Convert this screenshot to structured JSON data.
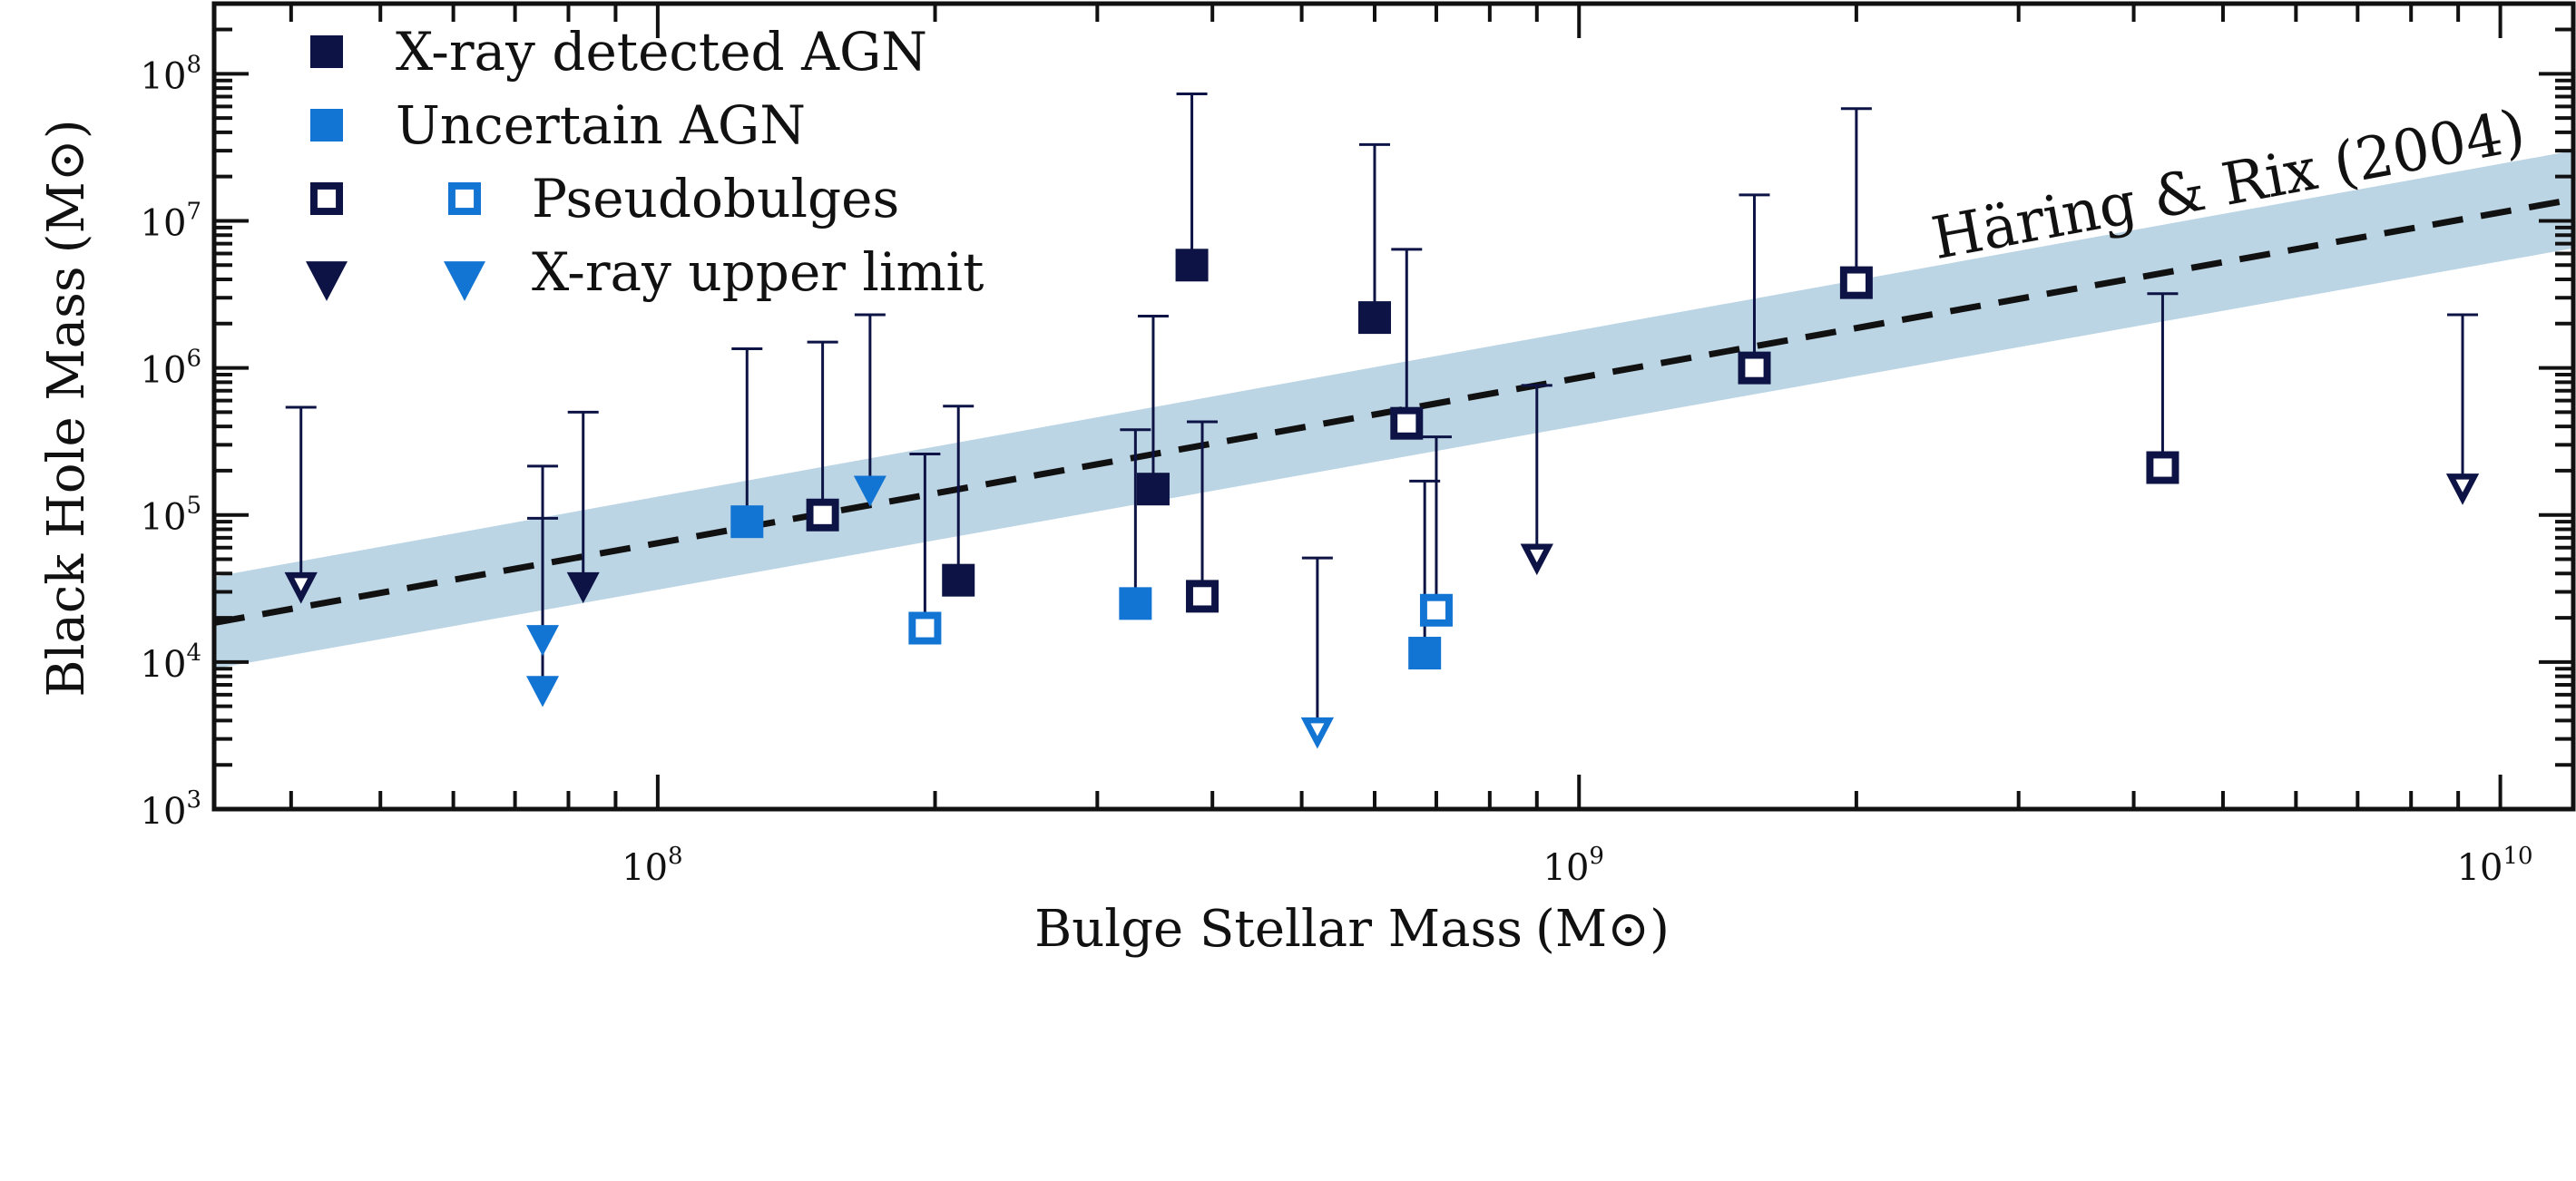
{
  "chart_data": {
    "type": "scatter",
    "x_scale": "log",
    "y_scale": "log",
    "xlim": [
      33000000,
      12000000000
    ],
    "ylim": [
      1000,
      300000000
    ],
    "xlabel": "Bulge Stellar Mass",
    "xlabel_unit": "(M⊙)",
    "ylabel": "Black Hole Mass",
    "ylabel_unit": "(M⊙)",
    "x_ticks": [
      {
        "base": "10",
        "exp": "8",
        "value": 100000000
      },
      {
        "base": "10",
        "exp": "9",
        "value": 1000000000
      },
      {
        "base": "10",
        "exp": "10",
        "value": 10000000000
      }
    ],
    "y_ticks": [
      {
        "base": "10",
        "exp": "3",
        "value": 1000
      },
      {
        "base": "10",
        "exp": "4",
        "value": 10000
      },
      {
        "base": "10",
        "exp": "5",
        "value": 100000
      },
      {
        "base": "10",
        "exp": "6",
        "value": 1000000
      },
      {
        "base": "10",
        "exp": "7",
        "value": 10000000
      },
      {
        "base": "10",
        "exp": "8",
        "value": 100000000
      }
    ],
    "relation": {
      "label": "Häring & Rix (2004)",
      "line": [
        [
          33000000,
          18500
        ],
        [
          12000000000,
          14000000
        ]
      ],
      "band_upper": [
        [
          33000000,
          38000
        ],
        [
          12000000000,
          30000000
        ]
      ],
      "band_lower": [
        [
          33000000,
          9000
        ],
        [
          12000000000,
          6500000
        ]
      ],
      "line_color": "#111111",
      "band_color": "#bcd5e5"
    },
    "legend": {
      "position": "top-left",
      "entries": [
        {
          "label": "X-ray detected AGN",
          "marker": "filled-square",
          "color": "#0d1445"
        },
        {
          "label": "Uncertain AGN",
          "marker": "filled-square",
          "color": "#1274d3"
        },
        {
          "label": "Pseudobulges",
          "marker": "open-square-pair",
          "colors": [
            "#0d1445",
            "#1274d3"
          ]
        },
        {
          "label": "X-ray upper limit",
          "marker": "triangle-pair",
          "colors": [
            "#0d1445",
            "#1274d3"
          ]
        }
      ]
    },
    "colors": {
      "dark": "#0d1445",
      "light": "#1274d3"
    },
    "points": [
      {
        "x": 41000000,
        "y": 32000,
        "marker": "open-triangle",
        "color": "dark",
        "err_up": 540000
      },
      {
        "x": 75000000,
        "y": 14000,
        "marker": "filled-triangle",
        "color": "light",
        "err_up": 215000
      },
      {
        "x": 75000000,
        "y": 6300,
        "marker": "filled-triangle",
        "color": "light",
        "err_up": 95000
      },
      {
        "x": 83000000,
        "y": 32000,
        "marker": "filled-triangle",
        "color": "dark",
        "err_up": 500000
      },
      {
        "x": 125000000,
        "y": 90000,
        "marker": "filled-square",
        "color": "light",
        "err_up": 1350000
      },
      {
        "x": 151000000,
        "y": 100000,
        "marker": "open-square",
        "color": "dark",
        "err_up": 1500000
      },
      {
        "x": 170000000,
        "y": 145000,
        "marker": "filled-triangle",
        "color": "light",
        "err_up": 2300000
      },
      {
        "x": 195000000,
        "y": 17000,
        "marker": "open-square",
        "color": "light",
        "err_up": 260000
      },
      {
        "x": 212000000,
        "y": 36000,
        "marker": "filled-square",
        "color": "dark",
        "err_up": 550000
      },
      {
        "x": 330000000,
        "y": 25000,
        "marker": "filled-square",
        "color": "light",
        "err_up": 380000
      },
      {
        "x": 345000000,
        "y": 150000,
        "marker": "filled-square",
        "color": "dark",
        "err_up": 2250000
      },
      {
        "x": 380000000,
        "y": 5000000,
        "marker": "filled-square",
        "color": "dark",
        "err_up": 73000000
      },
      {
        "x": 390000000,
        "y": 28000,
        "marker": "open-square",
        "color": "dark",
        "err_up": 430000
      },
      {
        "x": 520000000,
        "y": 3300,
        "marker": "open-triangle",
        "color": "light",
        "err_up": 51000
      },
      {
        "x": 600000000,
        "y": 2200000,
        "marker": "filled-square",
        "color": "dark",
        "err_up": 33000000
      },
      {
        "x": 650000000,
        "y": 420000,
        "marker": "open-square",
        "color": "dark",
        "err_up": 6400000
      },
      {
        "x": 680000000,
        "y": 11500,
        "marker": "filled-square",
        "color": "light",
        "err_up": 170000
      },
      {
        "x": 700000000,
        "y": 22500,
        "marker": "open-square",
        "color": "light",
        "err_up": 340000
      },
      {
        "x": 900000000,
        "y": 50000,
        "marker": "open-triangle",
        "color": "dark",
        "err_up": 760000
      },
      {
        "x": 1550000000,
        "y": 1000000,
        "marker": "open-square",
        "color": "dark",
        "err_up": 15000000
      },
      {
        "x": 2000000000,
        "y": 3800000,
        "marker": "open-square",
        "color": "dark",
        "err_up": 58000000
      },
      {
        "x": 4300000000,
        "y": 210000,
        "marker": "open-square",
        "color": "dark",
        "err_up": 3200000
      },
      {
        "x": 9100000000,
        "y": 150000,
        "marker": "open-triangle",
        "color": "dark",
        "err_up": 2300000
      }
    ]
  }
}
